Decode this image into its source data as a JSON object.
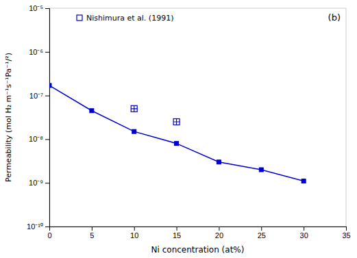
{
  "chart_data": {
    "type": "line",
    "title": "(b)",
    "xlabel": "Ni concentration (at%)",
    "ylabel": "Permeability (mol H₂ m⁻¹s⁻¹Pa⁻¹/²)",
    "series": [
      {
        "type": "line",
        "color": "#0000CC",
        "marker": "square",
        "x": [
          0,
          5,
          10,
          15,
          20,
          25,
          30
        ],
        "values": [
          1.7e-07,
          4.5e-08,
          1.5e-08,
          8e-09,
          3e-09,
          2e-09,
          1.1e-09
        ]
      },
      {
        "name": "Nishimura et al. (1991)",
        "type": "scatter",
        "color": "#0000CC",
        "marker": "square-plus",
        "x": [
          10,
          15
        ],
        "values": [
          5e-08,
          2.5e-08
        ]
      }
    ],
    "xlim": [
      0,
      35
    ],
    "xticks": [
      0,
      5,
      10,
      15,
      20,
      25,
      30,
      35
    ],
    "ylim": [
      1e-10,
      1e-05
    ],
    "yticks": [
      {
        "value": 1e-10,
        "label": "10⁻¹⁰"
      },
      {
        "value": 1e-09,
        "label": "10⁻⁹"
      },
      {
        "value": 1e-08,
        "label": "10⁻⁸"
      },
      {
        "value": 1e-07,
        "label": "10⁻⁷"
      },
      {
        "value": 1e-06,
        "label": "10⁻⁶"
      },
      {
        "value": 1e-05,
        "label": "10⁻⁵"
      }
    ],
    "log": "y",
    "grid": false,
    "legend": "upper left"
  }
}
